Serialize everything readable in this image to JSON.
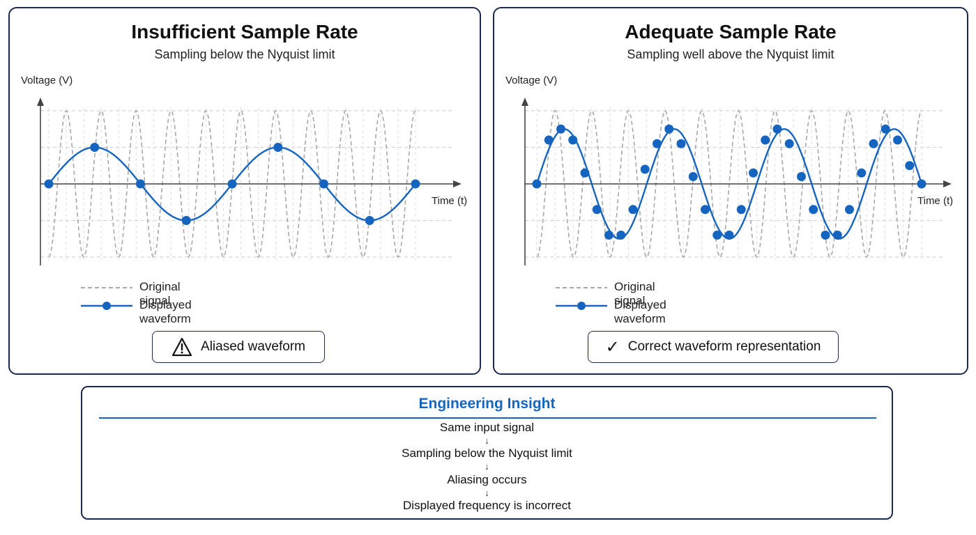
{
  "chart_data": [
    {
      "type": "line",
      "title": "Insufficient Sample Rate",
      "subtitle": "Sampling below the Nyquist limit",
      "ylabel": "Voltage (V)",
      "xlabel": "Time (t)",
      "ylim": [
        -1,
        1
      ],
      "grid": true,
      "legend_placement": "bottom-left",
      "series": [
        {
          "name": "Original signal",
          "style": "dashed",
          "color": "#a8a8a8",
          "cycles": 10.5
        },
        {
          "name": "Displayed waveform",
          "style": "solid-with-markers",
          "color": "#1565c0",
          "cycles": 2,
          "amplitude": 0.5,
          "samples": [
            0,
            0.5,
            0,
            -0.5,
            0,
            0.5,
            0,
            -0.5,
            0
          ]
        }
      ],
      "status_label": "Aliased waveform",
      "status_icon": "warning-icon"
    },
    {
      "type": "line",
      "title": "Adequate Sample Rate",
      "subtitle": "Sampling well above the Nyquist limit",
      "ylabel": "Voltage (V)",
      "xlabel": "Time (t)",
      "ylim": [
        -1,
        1
      ],
      "grid": true,
      "legend_placement": "bottom-left",
      "series": [
        {
          "name": "Original signal",
          "style": "dashed",
          "color": "#a8a8a8",
          "cycles": 10.5
        },
        {
          "name": "Displayed waveform",
          "style": "solid-with-markers",
          "color": "#1565c0",
          "cycles": 3.5,
          "amplitude": 0.75,
          "samples": [
            0,
            0.6,
            0.75,
            0.6,
            0.15,
            -0.35,
            -0.7,
            -0.7,
            -0.35,
            0.2,
            0.55,
            0.75,
            0.55,
            0.1,
            -0.35,
            -0.7,
            -0.7,
            -0.35,
            0.15,
            0.6,
            0.75,
            0.55,
            0.1,
            -0.35,
            -0.7,
            -0.7,
            -0.35,
            0.15,
            0.55,
            0.75,
            0.6,
            0.25,
            0
          ]
        }
      ],
      "status_label": "Correct waveform representation",
      "status_icon": "checkmark-icon"
    }
  ],
  "insight": {
    "title": "Engineering Insight",
    "steps": [
      "Same input signal",
      "Sampling below the Nyquist limit",
      "Aliasing occurs",
      "Displayed frequency is incorrect"
    ],
    "arrow": "↓"
  },
  "colors": {
    "accent": "#1565c0",
    "border": "#1b2a4a",
    "original_signal": "#a8a8a8"
  }
}
